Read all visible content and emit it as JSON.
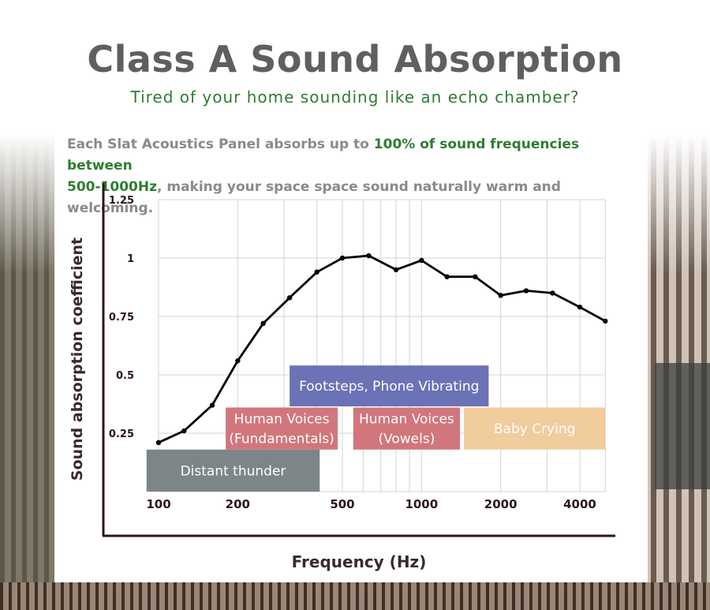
{
  "header": {
    "title": "Class A Sound Absorption",
    "subtitle": "Tired of your home sounding like an echo chamber?"
  },
  "description": {
    "part1": "Each Slat Acoustics Panel absorbs up to ",
    "highlight1": "100% of sound frequencies between",
    "highlight2": "500-1000Hz",
    "part2": ", making  your space space sound naturally warm and welcoming."
  },
  "colors": {
    "title": "#5f5f5f",
    "accent_green": "#2e7d32",
    "description": "#8a8a8a",
    "line": "#000000",
    "axis_labels": "#3a2a2a"
  },
  "chart_data": {
    "type": "line",
    "xlabel": "Frequency (Hz)",
    "ylabel": "Sound absorption coefficient",
    "x_scale": "log",
    "xlim": [
      100,
      5000
    ],
    "ylim": [
      0,
      1.25
    ],
    "x_ticks": [
      100,
      200,
      500,
      1000,
      2000,
      4000
    ],
    "x_tick_labels": [
      "100",
      "200",
      "500",
      "1000",
      "2000",
      "4000"
    ],
    "y_ticks": [
      0.25,
      0.5,
      0.75,
      1,
      1.25
    ],
    "y_tick_labels": [
      "0.25",
      "0.5",
      "0.75",
      "1",
      "1.25"
    ],
    "grid": true,
    "series": [
      {
        "x": [
          100,
          125,
          160,
          200,
          250,
          315,
          400,
          500,
          630,
          800,
          1000,
          1250,
          1600,
          2000,
          2500,
          3150,
          4000,
          5000
        ],
        "y": [
          0.21,
          0.26,
          0.37,
          0.56,
          0.72,
          0.83,
          0.94,
          1.0,
          1.01,
          0.95,
          0.99,
          0.92,
          0.92,
          0.84,
          0.86,
          0.85,
          0.79,
          0.73
        ]
      }
    ],
    "annotations": [
      {
        "lines": [
          "Footsteps, Phone Vibrating"
        ],
        "x_range": [
          315,
          1800
        ],
        "y_range": [
          0.365,
          0.54
        ],
        "color": "#6b72b6",
        "text_color": "#ffffff"
      },
      {
        "lines": [
          "Human Voices",
          "(Fundamentals)"
        ],
        "x_range": [
          180,
          480
        ],
        "y_range": [
          0.18,
          0.36
        ],
        "color": "#d1767c",
        "text_color": "#ffffff"
      },
      {
        "lines": [
          "Human Voices",
          "(Vowels)"
        ],
        "x_range": [
          550,
          1400
        ],
        "y_range": [
          0.18,
          0.36
        ],
        "color": "#d1767c",
        "text_color": "#ffffff"
      },
      {
        "lines": [
          "Baby Crying"
        ],
        "x_range": [
          1450,
          5000
        ],
        "y_range": [
          0.18,
          0.36
        ],
        "color": "#f1cc9c",
        "text_color": "#ffffff"
      },
      {
        "lines": [
          "Distant thunder"
        ],
        "x_range": [
          90,
          410
        ],
        "y_range": [
          0.0,
          0.18
        ],
        "color": "#7c8689",
        "text_color": "#ffffff"
      }
    ]
  }
}
